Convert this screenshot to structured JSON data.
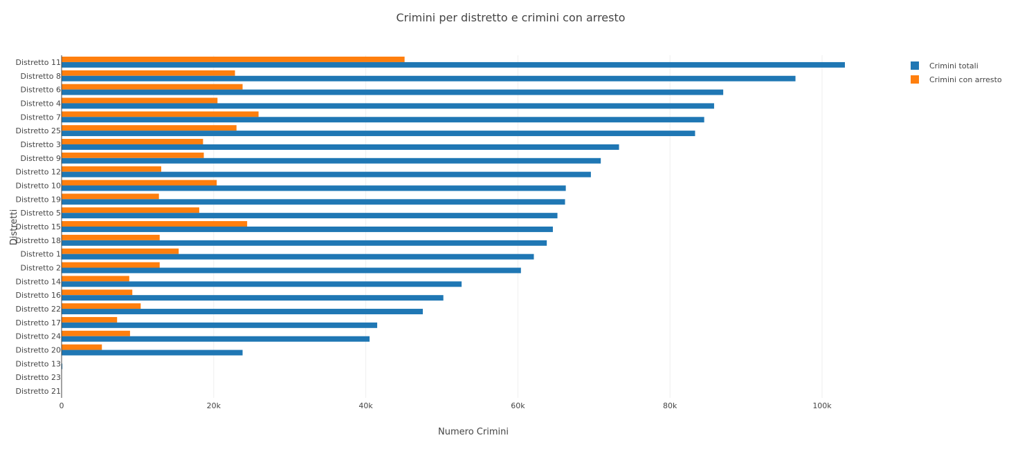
{
  "chart_data": {
    "type": "bar",
    "orientation": "horizontal",
    "title": "Crimini per distretto e crimini con arresto",
    "xlabel": "Numero Crimini",
    "ylabel": "Distretti",
    "xlim": [
      0,
      110000
    ],
    "x_ticks": [
      {
        "value": 0,
        "label": "0"
      },
      {
        "value": 20000,
        "label": "20k"
      },
      {
        "value": 40000,
        "label": "40k"
      },
      {
        "value": 60000,
        "label": "60k"
      },
      {
        "value": 80000,
        "label": "80k"
      },
      {
        "value": 100000,
        "label": "100k"
      }
    ],
    "grid": true,
    "legend_position": "top-right",
    "categories": [
      "Distretto 11",
      "Distretto 8",
      "Distretto 6",
      "Distretto 4",
      "Distretto 7",
      "Distretto 25",
      "Distretto 3",
      "Distretto 9",
      "Distretto 12",
      "Distretto 10",
      "Distretto 19",
      "Distretto 5",
      "Distretto 15",
      "Distretto 18",
      "Distretto 1",
      "Distretto 2",
      "Distretto 14",
      "Distretto 16",
      "Distretto 22",
      "Distretto 17",
      "Distretto 24",
      "Distretto 20",
      "Distretto 13",
      "Distretto 23",
      "Distretto 21"
    ],
    "series": [
      {
        "name": "Crimini totali",
        "color": "#1f77b4",
        "values": [
          103000,
          96500,
          87000,
          85800,
          84500,
          83300,
          73300,
          70900,
          69600,
          66300,
          66200,
          65200,
          64600,
          63800,
          62100,
          60400,
          52600,
          50200,
          47500,
          41500,
          40500,
          23800,
          100,
          10,
          5
        ]
      },
      {
        "name": "Crimini con arresto",
        "color": "#ff7f0e",
        "values": [
          45100,
          22800,
          23800,
          20500,
          25900,
          23000,
          18600,
          18700,
          13100,
          20400,
          12800,
          18100,
          24400,
          12900,
          15400,
          12900,
          8900,
          9300,
          10400,
          7300,
          9000,
          5300,
          0,
          0,
          0
        ]
      }
    ]
  }
}
